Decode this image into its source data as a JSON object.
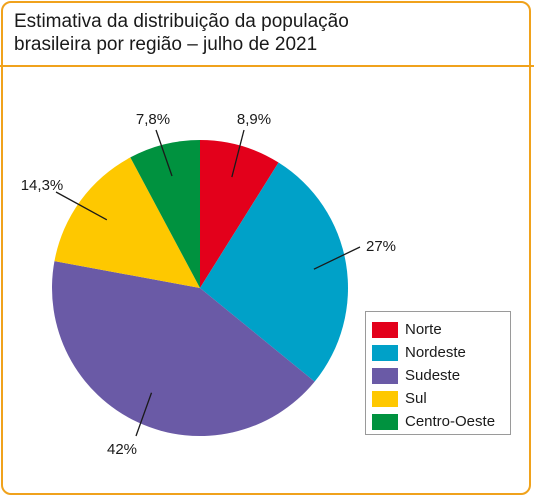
{
  "title_lines": [
    "Estimativa da distribuição da população",
    "brasileira por região – julho de 2021"
  ],
  "chart_data": {
    "type": "pie",
    "title": "Estimativa da distribuição da população brasileira por região – julho de 2021",
    "categories": [
      "Norte",
      "Nordeste",
      "Sudeste",
      "Sul",
      "Centro-Oeste"
    ],
    "values": [
      8.9,
      27,
      42,
      14.3,
      7.8
    ],
    "data_labels": [
      "8,9%",
      "27%",
      "42%",
      "14,3%",
      "7,8%"
    ],
    "colors": [
      "#e3001b",
      "#00a1c8",
      "#6a5aa6",
      "#fec800",
      "#00923f"
    ],
    "start": "top, clockwise",
    "legend_position": "bottom-right"
  }
}
